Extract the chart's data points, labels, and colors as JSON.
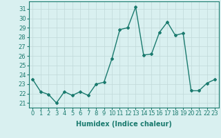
{
  "x": [
    0,
    1,
    2,
    3,
    4,
    5,
    6,
    7,
    8,
    9,
    10,
    11,
    12,
    13,
    14,
    15,
    16,
    17,
    18,
    19,
    20,
    21,
    22,
    23
  ],
  "y": [
    23.5,
    22.2,
    21.9,
    21.0,
    22.2,
    21.8,
    22.2,
    21.8,
    23.0,
    23.2,
    25.7,
    28.8,
    29.0,
    31.2,
    26.1,
    26.2,
    28.5,
    29.6,
    28.2,
    28.4,
    22.3,
    22.3,
    23.1,
    23.5
  ],
  "line_color": "#1a7a6e",
  "marker": "D",
  "marker_size": 2,
  "bg_color": "#d9f0f0",
  "grid_color": "#c0d8d8",
  "xlabel": "Humidex (Indice chaleur)",
  "ylabel_ticks": [
    21,
    22,
    23,
    24,
    25,
    26,
    27,
    28,
    29,
    30,
    31
  ],
  "ylim": [
    20.5,
    31.8
  ],
  "xlim": [
    -0.5,
    23.5
  ],
  "xlabel_color": "#1a7a6e",
  "tick_color": "#1a7a6e",
  "font_size": 6.0
}
